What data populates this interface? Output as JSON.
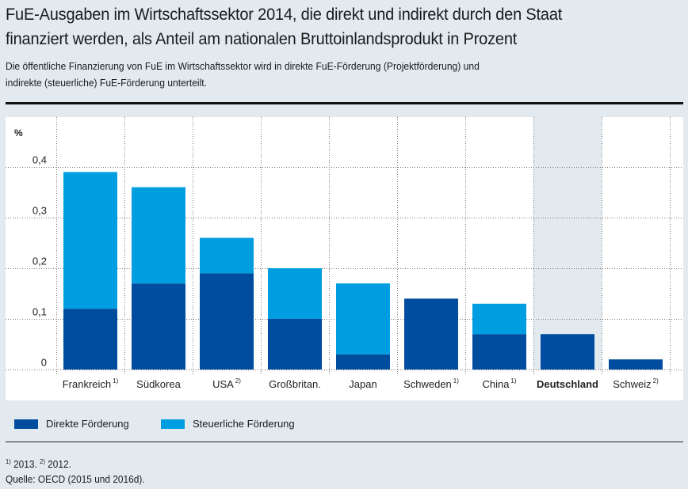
{
  "header": {
    "title_line1": "FuE-Ausgaben im Wirtschaftssektor 2014, die direkt und indirekt durch den Staat",
    "title_line2": "finanziert werden, als Anteil am nationalen Bruttoinlandsprodukt in Prozent",
    "subtitle_line1": "Die öffentliche Finanzierung von FuE im Wirtschaftssektor wird in direkte FuE-Förderung (Projektförderung) und",
    "subtitle_line2": "indirekte (steuerliche) FuE-Förderung unterteilt."
  },
  "colors": {
    "direkt": "#004c9e",
    "steuerlich": "#009ee0",
    "highlight": "#e2eaf0"
  },
  "legend": {
    "items": [
      {
        "label": "Direkte Förderung",
        "color": "#004c9e"
      },
      {
        "label": "Steuerliche Förderung",
        "color": "#009ee0"
      }
    ]
  },
  "footnote": {
    "notes": [
      {
        "marker": "1)",
        "text": " 2013. "
      },
      {
        "marker": "2)",
        "text": " 2012."
      }
    ],
    "source": "Quelle: OECD (2015 und 2016d)."
  },
  "chart_data": {
    "type": "bar",
    "stacked": true,
    "title": "FuE-Ausgaben im Wirtschaftssektor 2014, die direkt und indirekt durch den Staat finanziert werden, als Anteil am nationalen Bruttoinlandsprodukt in Prozent",
    "ylabel": "%",
    "xlabel": "",
    "ylim": [
      0,
      0.45
    ],
    "yticks": [
      0,
      0.1,
      0.2,
      0.3,
      0.4
    ],
    "ytick_labels": [
      "0",
      "0,1",
      "0,2",
      "0,3",
      "0,4"
    ],
    "grid": true,
    "legend_position": "bottom-left",
    "highlight_category": "Deutschland",
    "categories": [
      "Frankreich",
      "Südkorea",
      "USA",
      "Großbritan.",
      "Japan",
      "Schweden",
      "China",
      "Deutschland",
      "Schweiz"
    ],
    "category_footnotes": [
      "1)",
      "",
      "2)",
      "",
      "",
      "1)",
      "1)",
      "",
      "2)"
    ],
    "series": [
      {
        "name": "Direkte Förderung",
        "values": [
          0.12,
          0.17,
          0.19,
          0.1,
          0.03,
          0.14,
          0.07,
          0.07,
          0.02
        ]
      },
      {
        "name": "Steuerliche Förderung",
        "values": [
          0.27,
          0.19,
          0.07,
          0.1,
          0.14,
          0.0,
          0.06,
          0.0,
          0.0
        ]
      }
    ]
  }
}
